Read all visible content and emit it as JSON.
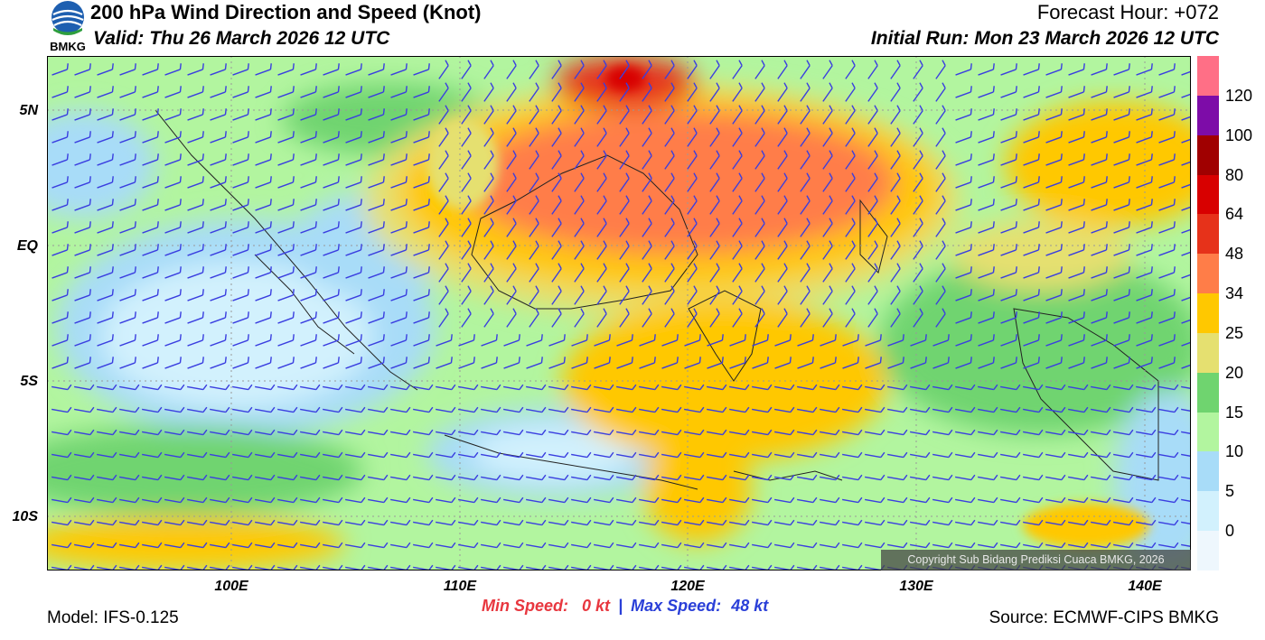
{
  "header": {
    "title": "200 hPa Wind Direction and Speed (Knot)",
    "valid": "Valid: Thu 26 March 2026 12 UTC",
    "forecast_hour": "Forecast Hour: +072",
    "initial_run": "Initial Run: Mon 23 March 2026 12 UTC"
  },
  "logo": {
    "text": "BMKG",
    "icon": "bmkg-logo-icon"
  },
  "map": {
    "lat_labels": [
      "5N",
      "EQ",
      "5S",
      "10S"
    ],
    "lon_labels": [
      "100E",
      "110E",
      "120E",
      "130E",
      "140E"
    ],
    "copyright": "Copyright Sub Bidang Prediksi Cuaca BMKG, 2026"
  },
  "colorbar": {
    "labels": [
      "120",
      "100",
      "80",
      "64",
      "48",
      "34",
      "25",
      "20",
      "15",
      "10",
      "5",
      "0"
    ],
    "colors": [
      "#ff6f86",
      "#7d0ca8",
      "#a00000",
      "#d80000",
      "#e6321a",
      "#ff7d48",
      "#ffc800",
      "#e5e070",
      "#6fd46f",
      "#b2f59f",
      "#a8dcf8",
      "#d2f1fd",
      "#eef7fd"
    ]
  },
  "footer": {
    "model": "Model: IFS-0.125",
    "min_label": "Min Speed:",
    "min_value": "0 kt",
    "separator": "|",
    "max_label": "Max Speed:",
    "max_value": "48 kt",
    "source": "Source: ECMWF-CIPS BMKG"
  }
}
